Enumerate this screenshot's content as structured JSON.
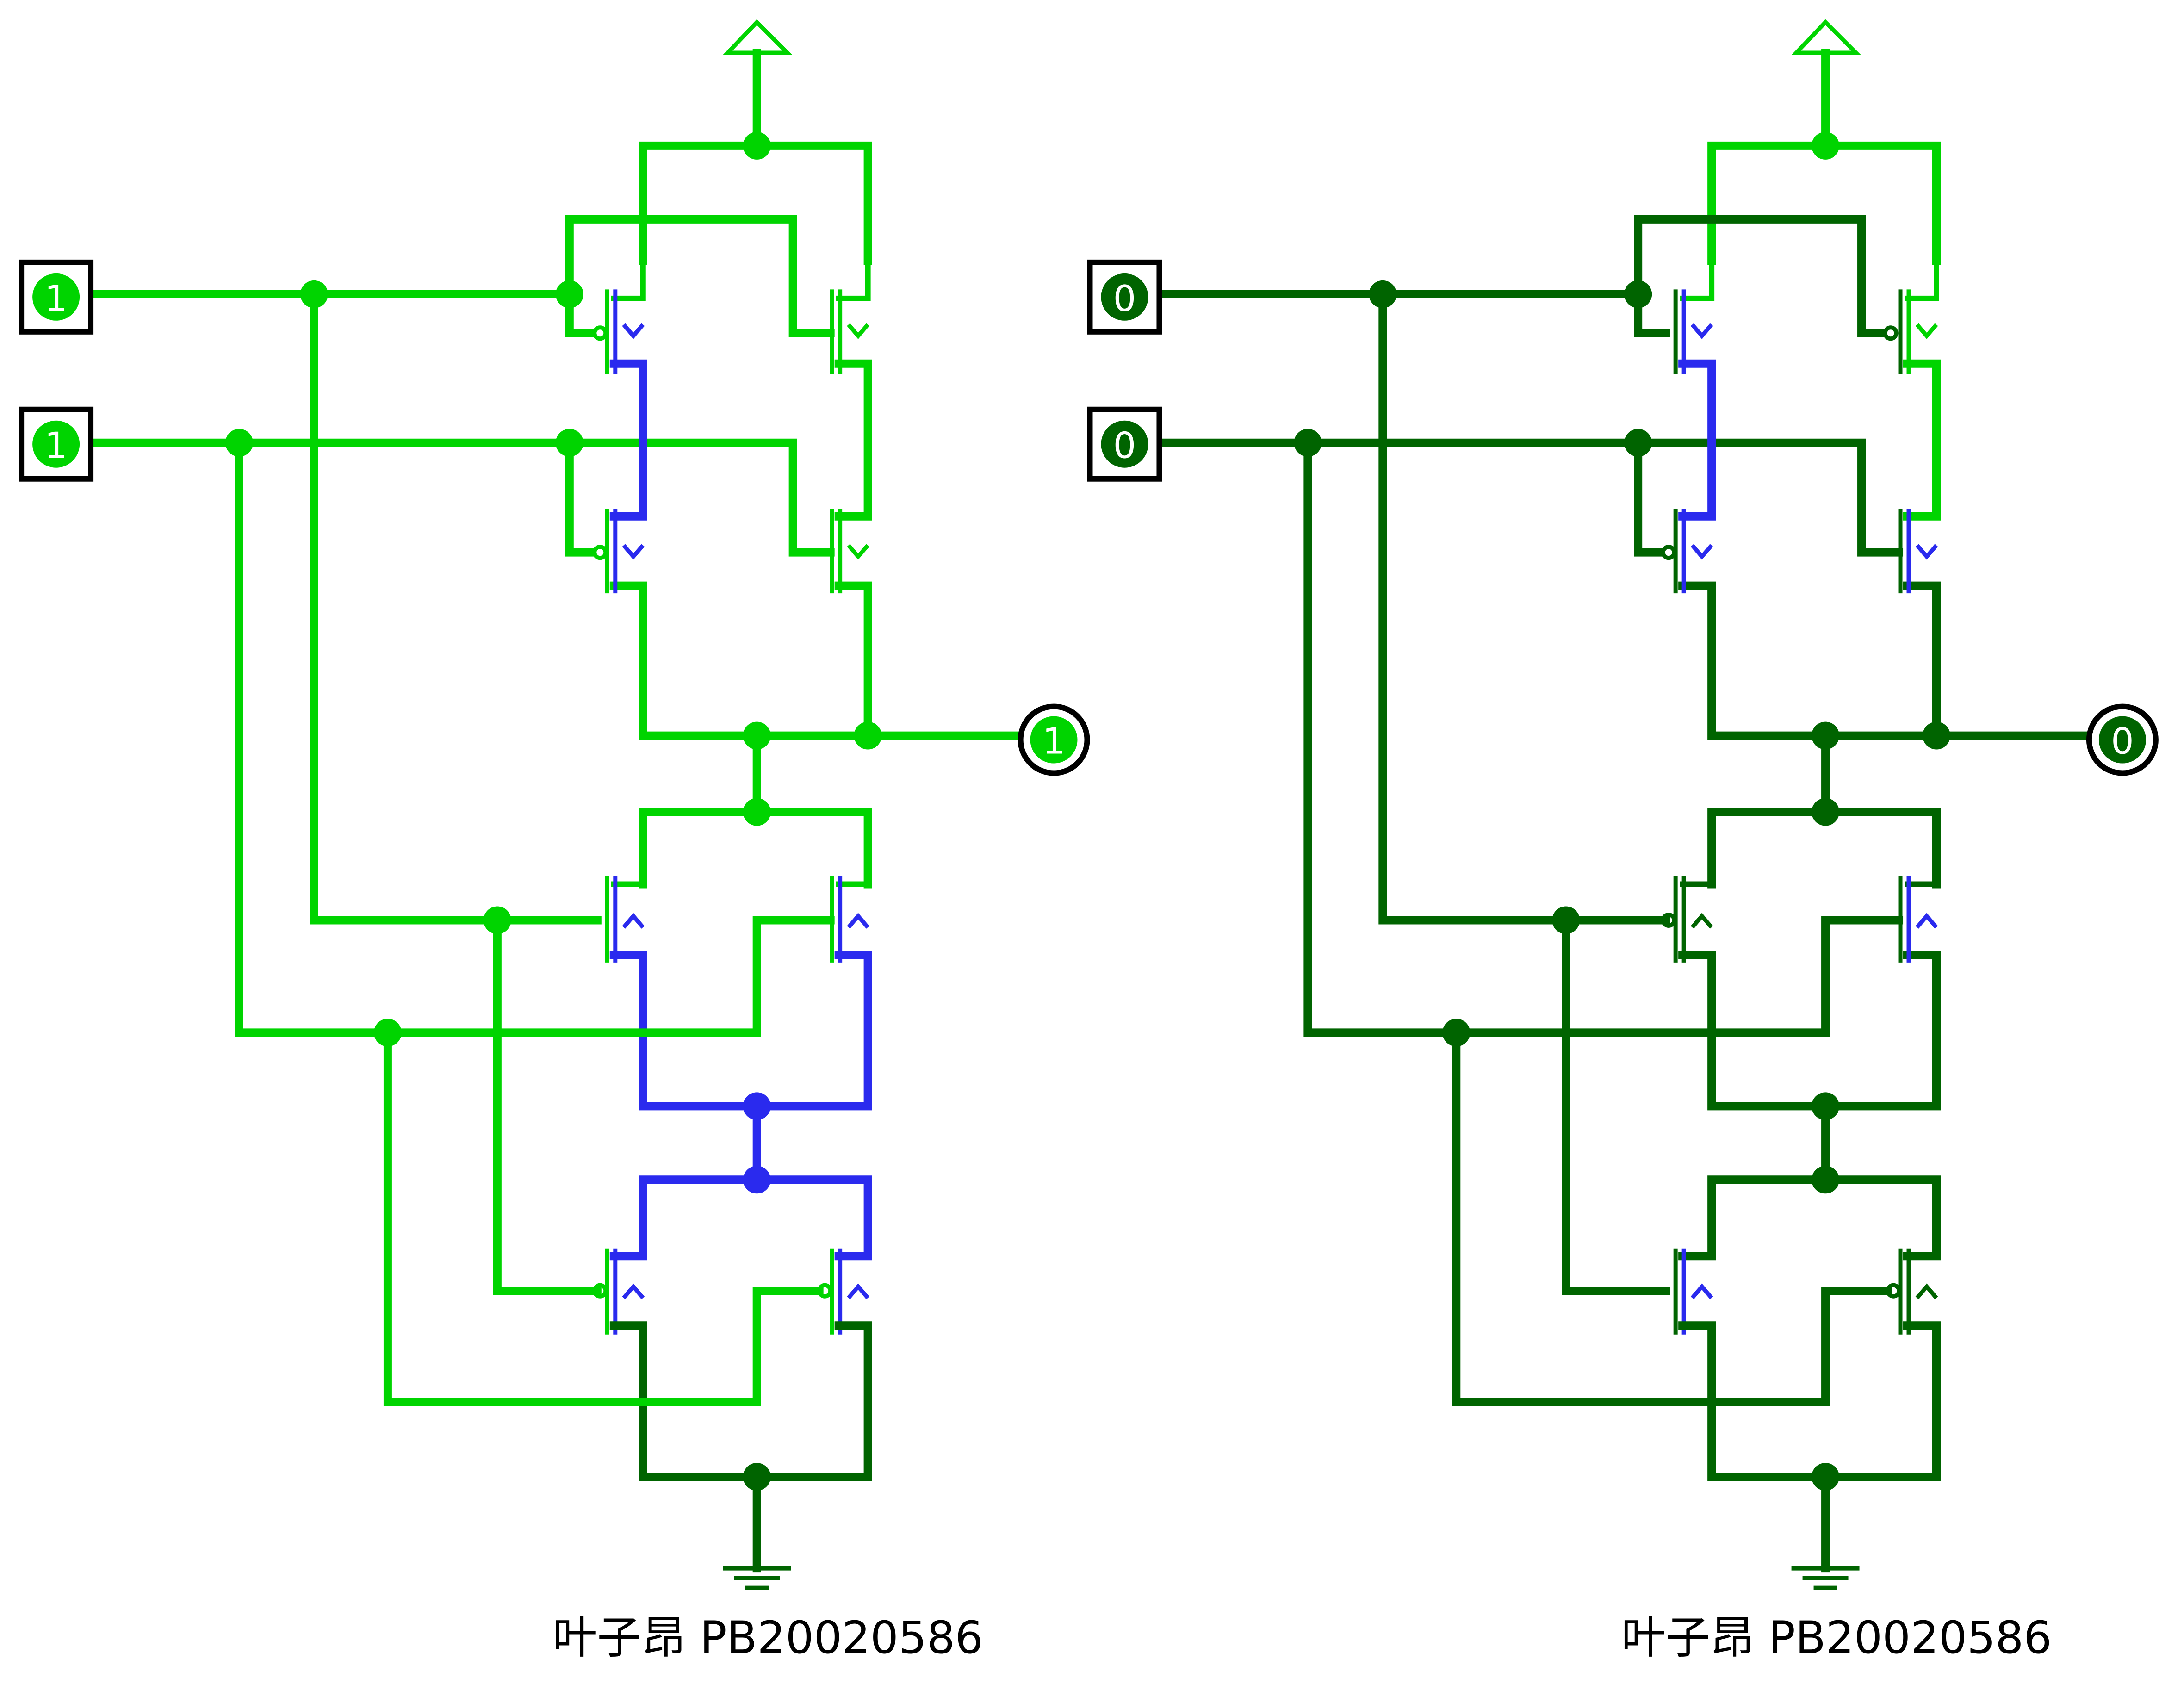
{
  "colors": {
    "high": "#00d400",
    "low": "#006400",
    "float": "#2a2aee",
    "frame": "#000000",
    "background": "#ffffff"
  },
  "circuits": [
    {
      "id": "left",
      "inputs": [
        "1",
        "1"
      ],
      "output": "1",
      "caption": "叶子昂 PB20020586"
    },
    {
      "id": "right",
      "inputs": [
        "0",
        "0"
      ],
      "output": "0",
      "caption": "叶子昂 PB20020586"
    }
  ]
}
